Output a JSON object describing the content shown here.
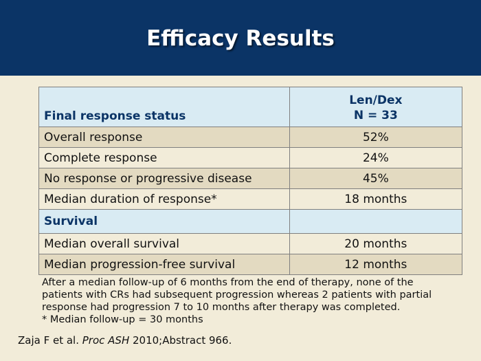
{
  "slide": {
    "title": "Efficacy Results"
  },
  "table": {
    "header": {
      "col1": "Final response status",
      "col2_line1": "Len/Dex",
      "col2_line2": "N = 33"
    },
    "rows": [
      {
        "label": "Overall response",
        "value": "52%"
      },
      {
        "label": "Complete response",
        "value": "24%"
      },
      {
        "label": "No response or progressive disease",
        "value": "45%"
      },
      {
        "label": "Median duration of response*",
        "value": "18 months"
      }
    ],
    "survival_header": "Survival",
    "survival_rows": [
      {
        "label": "Median overall survival",
        "value": "20 months"
      },
      {
        "label": "Median progression-free survival",
        "value": "12 months"
      }
    ]
  },
  "footnote": {
    "lines": [
      "After a median follow-up of 6 months from the end of therapy, none of the",
      "patients with CRs had subsequent progression whereas 2 patients with partial",
      "response had progression 7 to 10 months after therapy was completed.",
      "* Median follow-up = 30 months"
    ]
  },
  "citation": {
    "prefix": "Zaja F et al. ",
    "journal": "Proc ASH",
    "suffix": " 2010;Abstract 966."
  },
  "colors": {
    "header_bg": "#0b3466",
    "page_bg": "#f2ecd9",
    "row_alt_bg": "#e3dac1",
    "table_header_bg": "#d9ebf3",
    "header_text": "#0b3466"
  }
}
